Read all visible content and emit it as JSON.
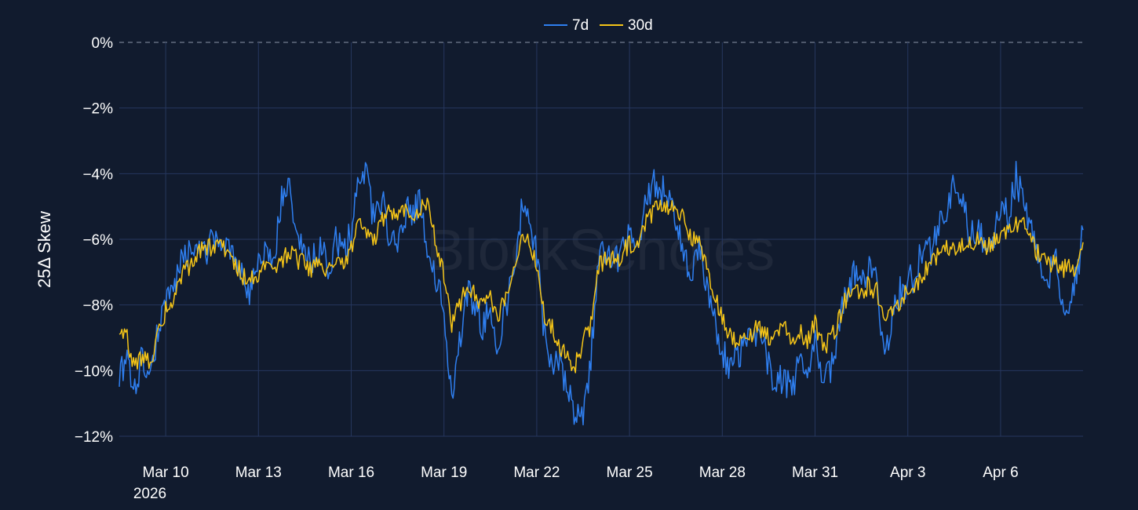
{
  "chart_data": {
    "type": "line",
    "watermark": "BlockScholes",
    "ylabel": "25Δ Skew",
    "y_unit": "%",
    "ylim": [
      -12.4,
      0
    ],
    "y_ticks": [
      0,
      -2,
      -4,
      -6,
      -8,
      -10,
      -12
    ],
    "y_tick_labels": [
      "0%",
      "−2%",
      "−4%",
      "−6%",
      "−8%",
      "−10%",
      "−12%"
    ],
    "xlim": [
      "2026-03-08T12:00",
      "2026-04-08T16:00"
    ],
    "x_ticks": [
      "2026-03-10",
      "2026-03-13",
      "2026-03-16",
      "2026-03-19",
      "2026-03-22",
      "2026-03-25",
      "2026-03-28",
      "2026-03-31",
      "2026-04-03",
      "2026-04-06"
    ],
    "x_tick_labels": [
      "Mar 10",
      "Mar 13",
      "Mar 16",
      "Mar 19",
      "Mar 22",
      "Mar 25",
      "Mar 28",
      "Mar 31",
      "Apr 3",
      "Apr 6"
    ],
    "x_year_label": "2026",
    "grid": true,
    "zero_line": "dashed",
    "legend_position": "top-center",
    "series": [
      {
        "name": "7d",
        "color": "#2f7ff0",
        "points": [
          [
            "2026-03-08T12:00",
            -10.0
          ],
          [
            "2026-03-08T18:00",
            -9.8
          ],
          [
            "2026-03-09T00:00",
            -10.4
          ],
          [
            "2026-03-09T06:00",
            -9.6
          ],
          [
            "2026-03-09T12:00",
            -10.3
          ],
          [
            "2026-03-09T18:00",
            -8.8
          ],
          [
            "2026-03-10T00:00",
            -8.0
          ],
          [
            "2026-03-10T06:00",
            -7.6
          ],
          [
            "2026-03-10T12:00",
            -6.8
          ],
          [
            "2026-03-10T18:00",
            -6.5
          ],
          [
            "2026-03-11T00:00",
            -6.2
          ],
          [
            "2026-03-11T06:00",
            -6.4
          ],
          [
            "2026-03-11T12:00",
            -6.1
          ],
          [
            "2026-03-11T18:00",
            -6.0
          ],
          [
            "2026-03-12T00:00",
            -6.3
          ],
          [
            "2026-03-12T06:00",
            -6.6
          ],
          [
            "2026-03-12T12:00",
            -7.2
          ],
          [
            "2026-03-12T18:00",
            -7.6
          ],
          [
            "2026-03-13T00:00",
            -6.9
          ],
          [
            "2026-03-13T06:00",
            -6.4
          ],
          [
            "2026-03-13T12:00",
            -6.8
          ],
          [
            "2026-03-13T18:00",
            -4.7
          ],
          [
            "2026-03-14T00:00",
            -4.2
          ],
          [
            "2026-03-14T06:00",
            -5.9
          ],
          [
            "2026-03-14T12:00",
            -6.3
          ],
          [
            "2026-03-14T18:00",
            -6.6
          ],
          [
            "2026-03-15T00:00",
            -6.2
          ],
          [
            "2026-03-15T06:00",
            -6.9
          ],
          [
            "2026-03-15T12:00",
            -6.1
          ],
          [
            "2026-03-15T18:00",
            -6.5
          ],
          [
            "2026-03-16T00:00",
            -5.8
          ],
          [
            "2026-03-16T06:00",
            -4.3
          ],
          [
            "2026-03-16T12:00",
            -4.1
          ],
          [
            "2026-03-16T18:00",
            -5.6
          ],
          [
            "2026-03-17T00:00",
            -4.8
          ],
          [
            "2026-03-17T06:00",
            -5.9
          ],
          [
            "2026-03-17T12:00",
            -6.4
          ],
          [
            "2026-03-17T18:00",
            -5.2
          ],
          [
            "2026-03-18T00:00",
            -5.1
          ],
          [
            "2026-03-18T06:00",
            -4.9
          ],
          [
            "2026-03-18T12:00",
            -6.3
          ],
          [
            "2026-03-18T18:00",
            -7.2
          ],
          [
            "2026-03-19T00:00",
            -8.2
          ],
          [
            "2026-03-19T06:00",
            -10.6
          ],
          [
            "2026-03-19T12:00",
            -9.2
          ],
          [
            "2026-03-19T18:00",
            -7.6
          ],
          [
            "2026-03-20T00:00",
            -7.9
          ],
          [
            "2026-03-20T06:00",
            -8.7
          ],
          [
            "2026-03-20T12:00",
            -8.1
          ],
          [
            "2026-03-20T18:00",
            -9.4
          ],
          [
            "2026-03-21T00:00",
            -8.1
          ],
          [
            "2026-03-21T06:00",
            -6.8
          ],
          [
            "2026-03-21T12:00",
            -5.2
          ],
          [
            "2026-03-21T18:00",
            -5.3
          ],
          [
            "2026-03-22T00:00",
            -6.4
          ],
          [
            "2026-03-22T06:00",
            -8.9
          ],
          [
            "2026-03-22T12:00",
            -10.2
          ],
          [
            "2026-03-22T18:00",
            -9.6
          ],
          [
            "2026-03-23T00:00",
            -10.7
          ],
          [
            "2026-03-23T06:00",
            -11.3
          ],
          [
            "2026-03-23T12:00",
            -11.6
          ],
          [
            "2026-03-23T18:00",
            -9.5
          ],
          [
            "2026-03-24T00:00",
            -6.7
          ],
          [
            "2026-03-24T06:00",
            -6.4
          ],
          [
            "2026-03-24T12:00",
            -6.8
          ],
          [
            "2026-03-24T18:00",
            -6.2
          ],
          [
            "2026-03-25T00:00",
            -6.0
          ],
          [
            "2026-03-25T06:00",
            -6.5
          ],
          [
            "2026-03-25T12:00",
            -5.0
          ],
          [
            "2026-03-25T18:00",
            -4.3
          ],
          [
            "2026-03-26T00:00",
            -4.4
          ],
          [
            "2026-03-26T06:00",
            -4.7
          ],
          [
            "2026-03-26T12:00",
            -5.6
          ],
          [
            "2026-03-26T18:00",
            -6.4
          ],
          [
            "2026-03-27T00:00",
            -7.0
          ],
          [
            "2026-03-27T06:00",
            -6.3
          ],
          [
            "2026-03-27T12:00",
            -7.5
          ],
          [
            "2026-03-27T18:00",
            -8.4
          ],
          [
            "2026-03-28T00:00",
            -9.4
          ],
          [
            "2026-03-28T06:00",
            -10.0
          ],
          [
            "2026-03-28T12:00",
            -9.6
          ],
          [
            "2026-03-28T18:00",
            -9.1
          ],
          [
            "2026-03-29T00:00",
            -9.3
          ],
          [
            "2026-03-29T06:00",
            -8.8
          ],
          [
            "2026-03-29T12:00",
            -9.9
          ],
          [
            "2026-03-29T18:00",
            -10.4
          ],
          [
            "2026-03-30T00:00",
            -10.1
          ],
          [
            "2026-03-30T06:00",
            -10.8
          ],
          [
            "2026-03-30T12:00",
            -9.7
          ],
          [
            "2026-03-30T18:00",
            -10.2
          ],
          [
            "2026-03-31T00:00",
            -9.1
          ],
          [
            "2026-03-31T06:00",
            -10.3
          ],
          [
            "2026-03-31T12:00",
            -10.0
          ],
          [
            "2026-03-31T18:00",
            -8.9
          ],
          [
            "2026-04-01T00:00",
            -7.6
          ],
          [
            "2026-04-01T06:00",
            -7.1
          ],
          [
            "2026-04-01T12:00",
            -7.3
          ],
          [
            "2026-04-01T18:00",
            -7.0
          ],
          [
            "2026-04-02T00:00",
            -7.4
          ],
          [
            "2026-04-02T06:00",
            -9.8
          ],
          [
            "2026-04-02T12:00",
            -8.1
          ],
          [
            "2026-04-02T18:00",
            -7.6
          ],
          [
            "2026-04-03T00:00",
            -7.3
          ],
          [
            "2026-04-03T06:00",
            -7.2
          ],
          [
            "2026-04-03T12:00",
            -6.1
          ],
          [
            "2026-04-03T18:00",
            -6.3
          ],
          [
            "2026-04-04T00:00",
            -5.6
          ],
          [
            "2026-04-04T06:00",
            -5.2
          ],
          [
            "2026-04-04T12:00",
            -4.3
          ],
          [
            "2026-04-04T18:00",
            -4.8
          ],
          [
            "2026-04-05T00:00",
            -5.8
          ],
          [
            "2026-04-05T06:00",
            -5.6
          ],
          [
            "2026-04-05T12:00",
            -6.2
          ],
          [
            "2026-04-05T18:00",
            -6.0
          ],
          [
            "2026-04-06T00:00",
            -5.1
          ],
          [
            "2026-04-06T06:00",
            -5.3
          ],
          [
            "2026-04-06T12:00",
            -4.1
          ],
          [
            "2026-04-06T18:00",
            -5.0
          ],
          [
            "2026-04-07T00:00",
            -5.9
          ],
          [
            "2026-04-07T06:00",
            -6.7
          ],
          [
            "2026-04-07T12:00",
            -7.4
          ],
          [
            "2026-04-07T18:00",
            -6.3
          ],
          [
            "2026-04-08T00:00",
            -8.2
          ],
          [
            "2026-04-08T06:00",
            -7.7
          ],
          [
            "2026-04-08T12:00",
            -6.9
          ],
          [
            "2026-04-08T16:00",
            -5.6
          ]
        ]
      },
      {
        "name": "30d",
        "color": "#f5c518",
        "points": [
          [
            "2026-03-08T12:00",
            -8.9
          ],
          [
            "2026-03-08T18:00",
            -9.0
          ],
          [
            "2026-03-09T00:00",
            -9.9
          ],
          [
            "2026-03-09T06:00",
            -9.5
          ],
          [
            "2026-03-09T12:00",
            -9.8
          ],
          [
            "2026-03-09T18:00",
            -9.0
          ],
          [
            "2026-03-10T00:00",
            -8.1
          ],
          [
            "2026-03-10T06:00",
            -7.9
          ],
          [
            "2026-03-10T12:00",
            -7.1
          ],
          [
            "2026-03-10T18:00",
            -6.9
          ],
          [
            "2026-03-11T00:00",
            -6.5
          ],
          [
            "2026-03-11T06:00",
            -6.3
          ],
          [
            "2026-03-11T12:00",
            -6.2
          ],
          [
            "2026-03-11T18:00",
            -6.1
          ],
          [
            "2026-03-12T00:00",
            -6.3
          ],
          [
            "2026-03-12T06:00",
            -6.7
          ],
          [
            "2026-03-12T12:00",
            -7.1
          ],
          [
            "2026-03-12T18:00",
            -7.3
          ],
          [
            "2026-03-13T00:00",
            -7.0
          ],
          [
            "2026-03-13T06:00",
            -6.8
          ],
          [
            "2026-03-13T12:00",
            -6.9
          ],
          [
            "2026-03-13T18:00",
            -6.6
          ],
          [
            "2026-03-14T00:00",
            -6.4
          ],
          [
            "2026-03-14T06:00",
            -6.6
          ],
          [
            "2026-03-14T12:00",
            -6.8
          ],
          [
            "2026-03-14T18:00",
            -6.9
          ],
          [
            "2026-03-15T00:00",
            -6.7
          ],
          [
            "2026-03-15T06:00",
            -7.0
          ],
          [
            "2026-03-15T12:00",
            -6.6
          ],
          [
            "2026-03-15T18:00",
            -6.7
          ],
          [
            "2026-03-16T00:00",
            -6.3
          ],
          [
            "2026-03-16T06:00",
            -5.6
          ],
          [
            "2026-03-16T12:00",
            -5.9
          ],
          [
            "2026-03-16T18:00",
            -6.1
          ],
          [
            "2026-03-17T00:00",
            -5.4
          ],
          [
            "2026-03-17T06:00",
            -5.2
          ],
          [
            "2026-03-17T12:00",
            -5.4
          ],
          [
            "2026-03-17T18:00",
            -5.2
          ],
          [
            "2026-03-18T00:00",
            -5.3
          ],
          [
            "2026-03-18T06:00",
            -5.0
          ],
          [
            "2026-03-18T12:00",
            -4.8
          ],
          [
            "2026-03-18T18:00",
            -6.3
          ],
          [
            "2026-03-19T00:00",
            -7.1
          ],
          [
            "2026-03-19T06:00",
            -8.6
          ],
          [
            "2026-03-19T12:00",
            -8.0
          ],
          [
            "2026-03-19T18:00",
            -7.4
          ],
          [
            "2026-03-20T00:00",
            -7.6
          ],
          [
            "2026-03-20T06:00",
            -8.1
          ],
          [
            "2026-03-20T12:00",
            -7.8
          ],
          [
            "2026-03-20T18:00",
            -8.3
          ],
          [
            "2026-03-21T00:00",
            -7.7
          ],
          [
            "2026-03-21T06:00",
            -6.7
          ],
          [
            "2026-03-21T12:00",
            -6.1
          ],
          [
            "2026-03-21T18:00",
            -6.0
          ],
          [
            "2026-03-22T00:00",
            -6.7
          ],
          [
            "2026-03-22T06:00",
            -8.3
          ],
          [
            "2026-03-22T12:00",
            -8.7
          ],
          [
            "2026-03-22T18:00",
            -9.2
          ],
          [
            "2026-03-23T00:00",
            -9.7
          ],
          [
            "2026-03-23T06:00",
            -9.8
          ],
          [
            "2026-03-23T12:00",
            -9.1
          ],
          [
            "2026-03-23T18:00",
            -8.6
          ],
          [
            "2026-03-24T00:00",
            -6.8
          ],
          [
            "2026-03-24T06:00",
            -6.6
          ],
          [
            "2026-03-24T12:00",
            -6.6
          ],
          [
            "2026-03-24T18:00",
            -6.5
          ],
          [
            "2026-03-25T00:00",
            -6.1
          ],
          [
            "2026-03-25T06:00",
            -6.3
          ],
          [
            "2026-03-25T12:00",
            -5.5
          ],
          [
            "2026-03-25T18:00",
            -5.2
          ],
          [
            "2026-03-26T00:00",
            -5.0
          ],
          [
            "2026-03-26T06:00",
            -5.1
          ],
          [
            "2026-03-26T12:00",
            -5.1
          ],
          [
            "2026-03-26T18:00",
            -5.4
          ],
          [
            "2026-03-27T00:00",
            -6.0
          ],
          [
            "2026-03-27T06:00",
            -6.1
          ],
          [
            "2026-03-27T12:00",
            -6.9
          ],
          [
            "2026-03-27T18:00",
            -7.6
          ],
          [
            "2026-03-28T00:00",
            -8.5
          ],
          [
            "2026-03-28T06:00",
            -9.0
          ],
          [
            "2026-03-28T12:00",
            -9.2
          ],
          [
            "2026-03-28T18:00",
            -9.0
          ],
          [
            "2026-03-29T00:00",
            -8.8
          ],
          [
            "2026-03-29T06:00",
            -8.7
          ],
          [
            "2026-03-29T12:00",
            -9.0
          ],
          [
            "2026-03-29T18:00",
            -8.9
          ],
          [
            "2026-03-30T00:00",
            -8.7
          ],
          [
            "2026-03-30T06:00",
            -9.0
          ],
          [
            "2026-03-30T12:00",
            -8.8
          ],
          [
            "2026-03-30T18:00",
            -9.1
          ],
          [
            "2026-03-31T00:00",
            -8.6
          ],
          [
            "2026-03-31T06:00",
            -9.3
          ],
          [
            "2026-03-31T12:00",
            -9.1
          ],
          [
            "2026-03-31T18:00",
            -8.5
          ],
          [
            "2026-04-01T00:00",
            -7.8
          ],
          [
            "2026-04-01T06:00",
            -7.5
          ],
          [
            "2026-04-01T12:00",
            -7.6
          ],
          [
            "2026-04-01T18:00",
            -7.4
          ],
          [
            "2026-04-02T00:00",
            -7.6
          ],
          [
            "2026-04-02T06:00",
            -8.4
          ],
          [
            "2026-04-02T12:00",
            -8.1
          ],
          [
            "2026-04-02T18:00",
            -7.9
          ],
          [
            "2026-04-03T00:00",
            -7.6
          ],
          [
            "2026-04-03T06:00",
            -7.5
          ],
          [
            "2026-04-03T12:00",
            -7.0
          ],
          [
            "2026-04-03T18:00",
            -6.8
          ],
          [
            "2026-04-04T00:00",
            -6.5
          ],
          [
            "2026-04-04T06:00",
            -6.3
          ],
          [
            "2026-04-04T12:00",
            -6.2
          ],
          [
            "2026-04-04T18:00",
            -6.2
          ],
          [
            "2026-04-05T00:00",
            -6.1
          ],
          [
            "2026-04-05T06:00",
            -6.0
          ],
          [
            "2026-04-05T12:00",
            -6.2
          ],
          [
            "2026-04-05T18:00",
            -6.1
          ],
          [
            "2026-04-06T00:00",
            -5.8
          ],
          [
            "2026-04-06T06:00",
            -5.7
          ],
          [
            "2026-04-06T12:00",
            -5.5
          ],
          [
            "2026-04-06T18:00",
            -5.6
          ],
          [
            "2026-04-07T00:00",
            -6.1
          ],
          [
            "2026-04-07T06:00",
            -6.5
          ],
          [
            "2026-04-07T12:00",
            -6.8
          ],
          [
            "2026-04-07T18:00",
            -6.6
          ],
          [
            "2026-04-08T00:00",
            -6.9
          ],
          [
            "2026-04-08T06:00",
            -6.8
          ],
          [
            "2026-04-08T12:00",
            -6.9
          ],
          [
            "2026-04-08T16:00",
            -6.2
          ]
        ]
      }
    ]
  }
}
